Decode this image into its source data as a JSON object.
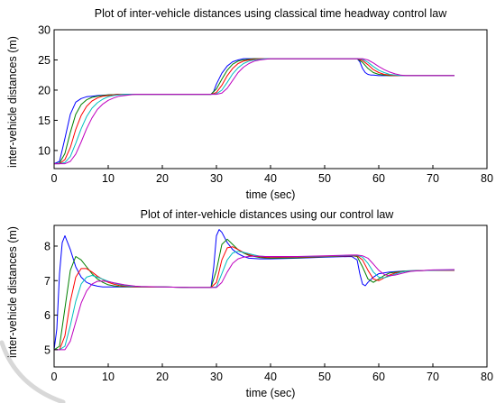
{
  "chart_data": [
    {
      "type": "line",
      "title": "Plot of inter-vehicle distances using classical time headway control law",
      "xlabel": "time (sec)",
      "ylabel": "inter-vehicle distances (m)",
      "xlim": [
        0,
        80
      ],
      "ylim": [
        7,
        30
      ],
      "xticks": [
        "0",
        "10",
        "20",
        "30",
        "40",
        "50",
        "60",
        "70",
        "80"
      ],
      "yticks": [
        "10",
        "15",
        "20",
        "25",
        "30"
      ],
      "colors": [
        "#0000ff",
        "#008000",
        "#ff0000",
        "#00bfbf",
        "#bf00bf"
      ],
      "series": [
        {
          "x": [
            0,
            1,
            2,
            3,
            4,
            5,
            6,
            7,
            8,
            10,
            12,
            15,
            20,
            25,
            28,
            29,
            29.5,
            30,
            31,
            32,
            33,
            34,
            35,
            36,
            37,
            38,
            40,
            45,
            50,
            55,
            56,
            56.5,
            57,
            57.5,
            58,
            58.5,
            59,
            60,
            61,
            62,
            65,
            70,
            74
          ],
          "values": [
            7.8,
            8.2,
            12,
            16,
            18,
            18.6,
            18.9,
            19.0,
            19.1,
            19.2,
            19.3,
            19.3,
            19.3,
            19.3,
            19.3,
            19.3,
            19.8,
            21,
            22.8,
            24,
            24.7,
            25.0,
            25.2,
            25.2,
            25.2,
            25.2,
            25.2,
            25.2,
            25.2,
            25.2,
            25.2,
            24.7,
            23.6,
            22.9,
            22.6,
            22.5,
            22.5,
            22.4,
            22.4,
            22.4,
            22.4,
            22.4,
            22.4
          ]
        },
        {
          "x": [
            0,
            1,
            2,
            3,
            4,
            5,
            6,
            7,
            8,
            9,
            10,
            12,
            15,
            20,
            25,
            29,
            30,
            31,
            32,
            33,
            34,
            35,
            36,
            37,
            38,
            40,
            45,
            50,
            55,
            56,
            57,
            58,
            59,
            60,
            61,
            62,
            65,
            70,
            74
          ],
          "values": [
            7.8,
            7.9,
            9.5,
            13,
            16,
            17.6,
            18.4,
            18.8,
            19.0,
            19.1,
            19.2,
            19.3,
            19.3,
            19.3,
            19.3,
            19.3,
            20.2,
            21.8,
            23.3,
            24.3,
            24.8,
            25.0,
            25.1,
            25.2,
            25.2,
            25.2,
            25.2,
            25.2,
            25.2,
            25.2,
            24.6,
            23.6,
            22.9,
            22.6,
            22.5,
            22.4,
            22.4,
            22.4,
            22.4
          ]
        },
        {
          "x": [
            0,
            1,
            2,
            3,
            4,
            5,
            6,
            7,
            8,
            9,
            10,
            11,
            12,
            15,
            20,
            25,
            29,
            30,
            31,
            32,
            33,
            34,
            35,
            36,
            37,
            38,
            40,
            45,
            50,
            55,
            56,
            57,
            58,
            59,
            60,
            61,
            62,
            63,
            65,
            70,
            74
          ],
          "values": [
            7.8,
            7.8,
            8.5,
            10.5,
            13.5,
            15.8,
            17.3,
            18.2,
            18.7,
            19.0,
            19.1,
            19.2,
            19.3,
            19.3,
            19.3,
            19.3,
            19.3,
            19.6,
            20.8,
            22.4,
            23.6,
            24.4,
            24.8,
            25.0,
            25.1,
            25.2,
            25.2,
            25.2,
            25.2,
            25.2,
            25.2,
            24.9,
            24.2,
            23.4,
            22.9,
            22.6,
            22.5,
            22.4,
            22.4,
            22.4,
            22.4
          ]
        },
        {
          "x": [
            0,
            1,
            2,
            3,
            4,
            5,
            6,
            7,
            8,
            9,
            10,
            11,
            12,
            13,
            15,
            20,
            25,
            29,
            30,
            31,
            32,
            33,
            34,
            35,
            36,
            37,
            38,
            39,
            40,
            45,
            50,
            55,
            56,
            57,
            58,
            59,
            60,
            61,
            62,
            63,
            64,
            65,
            70,
            74
          ],
          "values": [
            7.8,
            7.8,
            8.0,
            9.0,
            11.2,
            13.6,
            15.6,
            17.0,
            17.9,
            18.5,
            18.9,
            19.1,
            19.2,
            19.3,
            19.3,
            19.3,
            19.3,
            19.3,
            19.4,
            20.0,
            21.3,
            22.7,
            23.7,
            24.4,
            24.8,
            25.0,
            25.1,
            25.2,
            25.2,
            25.2,
            25.2,
            25.2,
            25.2,
            25.1,
            24.6,
            23.9,
            23.3,
            22.9,
            22.6,
            22.5,
            22.4,
            22.4,
            22.4,
            22.4
          ]
        },
        {
          "x": [
            0,
            1,
            2,
            3,
            4,
            5,
            6,
            7,
            8,
            9,
            10,
            11,
            12,
            13,
            14,
            15,
            20,
            25,
            29,
            30,
            31,
            32,
            33,
            34,
            35,
            36,
            37,
            38,
            39,
            40,
            41,
            45,
            50,
            55,
            56,
            57,
            58,
            59,
            60,
            61,
            62,
            63,
            64,
            65,
            66,
            70,
            74
          ],
          "values": [
            7.8,
            7.8,
            7.8,
            8.2,
            9.4,
            11.4,
            13.6,
            15.4,
            16.8,
            17.7,
            18.3,
            18.7,
            19.0,
            19.1,
            19.2,
            19.3,
            19.3,
            19.3,
            19.3,
            19.3,
            19.5,
            20.3,
            21.6,
            22.9,
            23.8,
            24.4,
            24.8,
            25.0,
            25.1,
            25.2,
            25.2,
            25.2,
            25.2,
            25.2,
            25.2,
            25.2,
            25.0,
            24.5,
            23.9,
            23.4,
            23.0,
            22.7,
            22.5,
            22.4,
            22.4,
            22.4,
            22.4
          ]
        }
      ]
    },
    {
      "type": "line",
      "title": "Plot of inter-vehicle distances using our control law",
      "xlabel": "time (sec)",
      "ylabel": "inter-vehicle distances (m)",
      "xlim": [
        0,
        80
      ],
      "ylim": [
        4.5,
        8.6
      ],
      "xticks": [
        "0",
        "10",
        "20",
        "30",
        "40",
        "50",
        "60",
        "70",
        "80"
      ],
      "yticks": [
        "5",
        "6",
        "7",
        "8"
      ],
      "colors": [
        "#0000ff",
        "#008000",
        "#ff0000",
        "#00bfbf",
        "#bf00bf"
      ],
      "series": [
        {
          "x": [
            0,
            0.5,
            1,
            1.5,
            2,
            3,
            4,
            5,
            6,
            7,
            8,
            9,
            10,
            12,
            15,
            20,
            25,
            28,
            29,
            29.5,
            30,
            30.5,
            31,
            32,
            33,
            34,
            35,
            36,
            38,
            40,
            45,
            50,
            55,
            56,
            56.5,
            57,
            57.5,
            58,
            59,
            60,
            62,
            65,
            70,
            74
          ],
          "values": [
            5.0,
            5.6,
            7.2,
            8.1,
            8.3,
            7.9,
            7.4,
            7.1,
            6.95,
            6.88,
            6.84,
            6.82,
            6.82,
            6.82,
            6.82,
            6.82,
            6.8,
            6.8,
            6.8,
            7.4,
            8.3,
            8.48,
            8.4,
            8.1,
            7.9,
            7.78,
            7.7,
            7.65,
            7.63,
            7.63,
            7.65,
            7.68,
            7.7,
            7.6,
            7.2,
            6.9,
            6.85,
            6.95,
            7.1,
            7.2,
            7.25,
            7.28,
            7.3,
            7.3
          ]
        },
        {
          "x": [
            0,
            1,
            2,
            3,
            4,
            5,
            6,
            7,
            8,
            9,
            10,
            11,
            12,
            15,
            20,
            25,
            29,
            30,
            31,
            32,
            33,
            34,
            35,
            36,
            38,
            40,
            45,
            50,
            55,
            56,
            57,
            58,
            59,
            60,
            61,
            62,
            65,
            70,
            74
          ],
          "values": [
            5.0,
            5.1,
            6.2,
            7.3,
            7.7,
            7.6,
            7.4,
            7.2,
            7.05,
            6.95,
            6.88,
            6.85,
            6.83,
            6.82,
            6.82,
            6.8,
            6.8,
            7.3,
            8.05,
            8.2,
            8.05,
            7.9,
            7.8,
            7.73,
            7.67,
            7.65,
            7.66,
            7.69,
            7.72,
            7.7,
            7.4,
            7.05,
            6.95,
            7.05,
            7.15,
            7.22,
            7.28,
            7.3,
            7.3
          ]
        },
        {
          "x": [
            0,
            1,
            2,
            3,
            4,
            5,
            6,
            7,
            8,
            9,
            10,
            11,
            12,
            13,
            15,
            20,
            25,
            29,
            30,
            31,
            32,
            33,
            34,
            35,
            36,
            37,
            38,
            40,
            45,
            50,
            55,
            56,
            57,
            58,
            59,
            60,
            61,
            62,
            63,
            65,
            70,
            74
          ],
          "values": [
            5.0,
            5.0,
            5.4,
            6.4,
            7.1,
            7.35,
            7.35,
            7.25,
            7.13,
            7.03,
            6.95,
            6.9,
            6.86,
            6.84,
            6.82,
            6.82,
            6.8,
            6.8,
            6.95,
            7.6,
            7.95,
            7.98,
            7.9,
            7.82,
            7.75,
            7.71,
            7.69,
            7.67,
            7.68,
            7.7,
            7.72,
            7.72,
            7.6,
            7.3,
            7.05,
            7.0,
            7.08,
            7.16,
            7.22,
            7.27,
            7.3,
            7.3
          ]
        },
        {
          "x": [
            0,
            1,
            2,
            3,
            4,
            5,
            6,
            7,
            8,
            9,
            10,
            11,
            12,
            13,
            14,
            15,
            20,
            25,
            29,
            30,
            31,
            32,
            33,
            34,
            35,
            36,
            37,
            38,
            39,
            40,
            45,
            50,
            55,
            56,
            57,
            58,
            59,
            60,
            61,
            62,
            63,
            64,
            65,
            70,
            74
          ],
          "values": [
            5.0,
            5.0,
            5.1,
            5.7,
            6.4,
            6.9,
            7.1,
            7.15,
            7.1,
            7.04,
            6.98,
            6.93,
            6.89,
            6.86,
            6.84,
            6.83,
            6.82,
            6.8,
            6.8,
            6.82,
            7.2,
            7.6,
            7.8,
            7.85,
            7.82,
            7.78,
            7.74,
            7.71,
            7.7,
            7.69,
            7.69,
            7.71,
            7.73,
            7.73,
            7.68,
            7.5,
            7.25,
            7.1,
            7.08,
            7.13,
            7.19,
            7.24,
            7.27,
            7.3,
            7.31
          ]
        },
        {
          "x": [
            0,
            1,
            2,
            3,
            4,
            5,
            6,
            7,
            8,
            9,
            10,
            11,
            12,
            13,
            14,
            15,
            16,
            20,
            25,
            29,
            30,
            31,
            32,
            33,
            34,
            35,
            36,
            37,
            38,
            39,
            40,
            41,
            45,
            50,
            55,
            56,
            57,
            58,
            59,
            60,
            61,
            62,
            63,
            64,
            65,
            66,
            70,
            74
          ],
          "values": [
            5.0,
            5.0,
            5.0,
            5.25,
            5.8,
            6.35,
            6.7,
            6.9,
            6.98,
            6.99,
            6.97,
            6.94,
            6.91,
            6.88,
            6.86,
            6.84,
            6.83,
            6.82,
            6.8,
            6.8,
            6.8,
            6.95,
            7.25,
            7.5,
            7.63,
            7.68,
            7.7,
            7.71,
            7.71,
            7.7,
            7.7,
            7.7,
            7.7,
            7.72,
            7.74,
            7.74,
            7.72,
            7.65,
            7.48,
            7.3,
            7.18,
            7.14,
            7.16,
            7.2,
            7.24,
            7.27,
            7.31,
            7.32
          ]
        }
      ]
    }
  ]
}
